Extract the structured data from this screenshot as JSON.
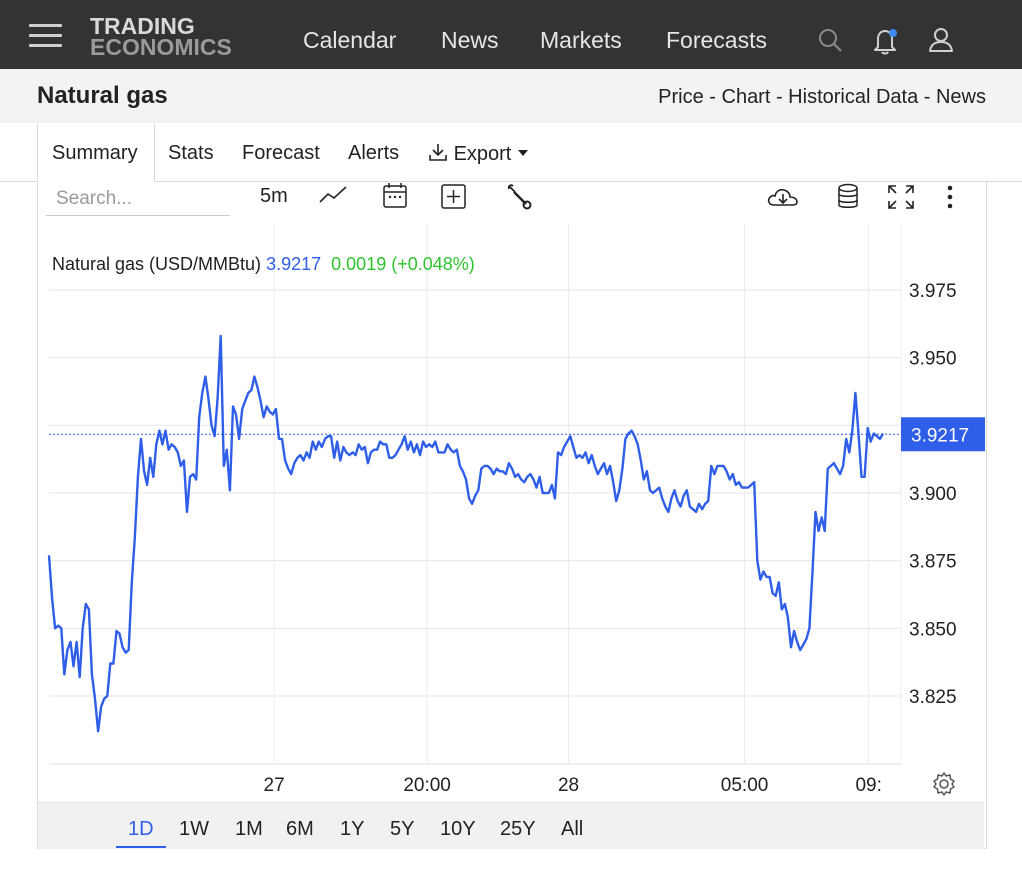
{
  "nav": {
    "logo_line1": "TRADING",
    "logo_line2": "ECONOMICS",
    "links": [
      "Calendar",
      "News",
      "Markets",
      "Forecasts"
    ]
  },
  "header": {
    "title": "Natural gas",
    "crumbs": "Price - Chart - Historical Data - News"
  },
  "tabs": [
    "Summary",
    "Stats",
    "Forecast",
    "Alerts",
    "Export"
  ],
  "toolbar": {
    "search_placeholder": "Search...",
    "interval": "5m"
  },
  "legend": {
    "name": "Natural gas (USD/MMBtu)",
    "price": "3.9217",
    "change": "0.0019 (+0.048%)"
  },
  "ranges": [
    "1D",
    "1W",
    "1M",
    "6M",
    "1Y",
    "5Y",
    "10Y",
    "25Y",
    "All"
  ],
  "active_range": "1D",
  "colors": {
    "line": "#2f5ee8",
    "change_positive": "#2ec22e",
    "nav_bg": "#333333"
  },
  "chart_data": {
    "type": "line",
    "ylim": [
      3.8,
      3.995
    ],
    "y_ticks": [
      3.975,
      3.95,
      3.925,
      3.9,
      3.875,
      3.85,
      3.825
    ],
    "y_tick_labels": [
      "3.975",
      "3.950",
      "3.925",
      "3.900",
      "3.875",
      "3.850",
      "3.825"
    ],
    "x_range": [
      0,
      290
    ],
    "x_ticks": [
      {
        "t": 78,
        "label": "27"
      },
      {
        "t": 131,
        "label": "20:00"
      },
      {
        "t": 180,
        "label": "28"
      },
      {
        "t": 241,
        "label": "05:00"
      },
      {
        "t": 284,
        "label": "09:"
      }
    ],
    "last_value": 3.9217,
    "last_value_label": "3.9217",
    "series": [
      {
        "values": [
          3.877,
          3.861,
          3.85,
          3.851,
          3.85,
          3.833,
          3.842,
          3.845,
          3.836,
          3.845,
          3.832,
          3.85,
          3.859,
          3.857,
          3.833,
          3.824,
          3.812,
          3.821,
          3.824,
          3.825,
          3.837,
          3.837,
          3.849,
          3.848,
          3.843,
          3.841,
          3.842,
          3.867,
          3.884,
          3.906,
          3.92,
          3.908,
          3.903,
          3.913,
          3.906,
          3.918,
          3.923,
          3.918,
          3.923,
          3.916,
          3.918,
          3.917,
          3.915,
          3.91,
          3.912,
          3.893,
          3.906,
          3.907,
          3.905,
          3.928,
          3.937,
          3.943,
          3.935,
          3.925,
          3.921,
          3.935,
          3.958,
          3.91,
          3.916,
          3.901,
          3.932,
          3.929,
          3.92,
          3.931,
          3.934,
          3.937,
          3.938,
          3.943,
          3.939,
          3.934,
          3.928,
          3.932,
          3.93,
          3.929,
          3.931,
          3.92,
          3.92,
          3.912,
          3.909,
          3.907,
          3.911,
          3.913,
          3.914,
          3.912,
          3.915,
          3.913,
          3.919,
          3.916,
          3.919,
          3.917,
          3.92,
          3.921,
          3.921,
          3.913,
          3.919,
          3.912,
          3.917,
          3.915,
          3.914,
          3.915,
          3.914,
          3.918,
          3.916,
          3.917,
          3.911,
          3.915,
          3.916,
          3.916,
          3.919,
          3.918,
          3.918,
          3.913,
          3.913,
          3.914,
          3.916,
          3.918,
          3.921,
          3.916,
          3.919,
          3.915,
          3.918,
          3.914,
          3.919,
          3.917,
          3.918,
          3.917,
          3.919,
          3.915,
          3.915,
          3.915,
          3.918,
          3.916,
          3.915,
          3.916,
          3.91,
          3.908,
          3.905,
          3.898,
          3.896,
          3.899,
          3.901,
          3.909,
          3.91,
          3.91,
          3.909,
          3.907,
          3.909,
          3.908,
          3.908,
          3.907,
          3.911,
          3.909,
          3.906,
          3.907,
          3.905,
          3.904,
          3.906,
          3.907,
          3.905,
          3.902,
          3.906,
          3.9,
          3.9,
          3.9,
          3.903,
          3.898,
          3.915,
          3.914,
          3.917,
          3.919,
          3.921,
          3.917,
          3.913,
          3.914,
          3.913,
          3.915,
          3.911,
          3.914,
          3.91,
          3.907,
          3.909,
          3.911,
          3.907,
          3.91,
          3.904,
          3.897,
          3.901,
          3.909,
          3.92,
          3.922,
          3.923,
          3.921,
          3.918,
          3.912,
          3.905,
          3.908,
          3.901,
          3.9,
          3.901,
          3.902,
          3.898,
          3.895,
          3.893,
          3.898,
          3.901,
          3.897,
          3.895,
          3.899,
          3.901,
          3.895,
          3.894,
          3.893,
          3.896,
          3.894,
          3.896,
          3.897,
          3.91,
          3.907,
          3.91,
          3.91,
          3.91,
          3.908,
          3.905,
          3.907,
          3.903,
          3.904,
          3.902,
          3.902,
          3.902,
          3.903,
          3.904,
          3.875,
          3.868,
          3.871,
          3.869,
          3.869,
          3.863,
          3.862,
          3.867,
          3.857,
          3.859,
          3.854,
          3.843,
          3.849,
          3.845,
          3.842,
          3.844,
          3.846,
          3.85,
          3.871,
          3.893,
          3.886,
          3.891,
          3.886,
          3.909,
          3.91,
          3.911,
          3.909,
          3.907,
          3.91,
          3.92,
          3.915,
          3.923,
          3.937,
          3.922,
          3.906,
          3.906,
          3.924,
          3.919,
          3.922,
          3.921,
          3.92,
          3.922
        ]
      }
    ]
  }
}
